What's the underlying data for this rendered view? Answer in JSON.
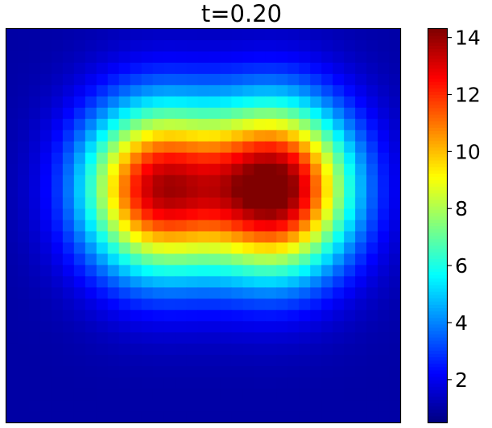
{
  "chart_data": {
    "type": "heatmap",
    "title": "t=0.20",
    "colormap": "jet",
    "grid_size": [
      35,
      35
    ],
    "colorbar": {
      "range": [
        0.5,
        14.3
      ],
      "ticks": [
        "2",
        "4",
        "6",
        "8",
        "10",
        "12",
        "14"
      ],
      "tick_values": [
        2,
        4,
        6,
        8,
        10,
        12,
        14
      ]
    },
    "background_value": 1.0,
    "blobs": [
      {
        "name": "left",
        "center_col": 12.8,
        "center_row": 13.7,
        "sigma_col": 4.6,
        "sigma_row": 5.3,
        "peak": 11.8
      },
      {
        "name": "right",
        "center_col": 23.6,
        "center_row": 13.7,
        "sigma_col": 4.6,
        "sigma_row": 5.3,
        "peak": 13.3
      }
    ],
    "xlabel": "",
    "ylabel": "",
    "grid": false,
    "legend": "colorbar-right"
  }
}
